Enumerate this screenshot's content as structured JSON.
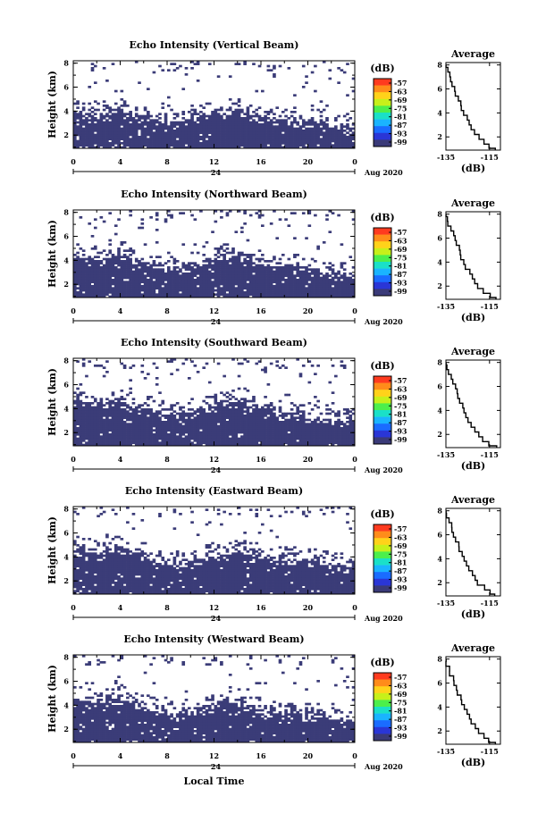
{
  "chart_data": {
    "type": "heatmap",
    "xlabel": "Local Time",
    "x_ticks": [
      "0",
      "4",
      "8",
      "12",
      "16",
      "20",
      "0"
    ],
    "date_label": "Aug 2020",
    "day_label": "24",
    "ylabel": "Height (km)",
    "y_ticks": [
      "8",
      "6",
      "4",
      "2"
    ],
    "ylim_km": [
      0.9,
      8.2
    ],
    "xlim_hours": [
      0,
      24
    ],
    "colorbar": {
      "label": "(dB)",
      "ticks": [
        "-57",
        "-63",
        "-69",
        "-75",
        "-81",
        "-87",
        "-93",
        "-99"
      ],
      "colors": [
        "#ff3b1f",
        "#ff8c1a",
        "#ffd21a",
        "#c7f01a",
        "#4cef4c",
        "#1ae0c8",
        "#1ab4ff",
        "#1a6cff",
        "#2a36d6",
        "#3a3a78"
      ],
      "fill_color": "#3b3c78"
    },
    "profile": {
      "title": "Average",
      "xlabel": "(dB)",
      "x_ticks": [
        "-135",
        "-115"
      ],
      "y_ticks": [
        "8",
        "6",
        "4",
        "2"
      ],
      "xlim": [
        -135,
        -110
      ],
      "ylim_km": [
        0.9,
        8.2
      ],
      "height_km": [
        8.0,
        7.6,
        7.2,
        6.8,
        6.4,
        6.0,
        5.6,
        5.2,
        4.8,
        4.4,
        4.0,
        3.6,
        3.2,
        2.8,
        2.4,
        2.0,
        1.6,
        1.2,
        0.9
      ],
      "power_db": [
        -135,
        -134.4,
        -133.6,
        -132.8,
        -131.9,
        -131.1,
        -130.4,
        -129.3,
        -128.5,
        -127.6,
        -126.7,
        -125.6,
        -124.5,
        -123.4,
        -121.8,
        -120.0,
        -117.8,
        -114.8,
        -112.2
      ]
    },
    "panels": [
      {
        "title": "Echo Intensity (Vertical Beam)",
        "top_km": [
          3.7,
          3.6,
          3.5,
          3.6,
          3.8,
          3.5,
          3.4,
          3.1,
          2.9,
          3.0,
          3.2,
          3.5,
          3.7,
          3.8,
          3.9,
          3.6,
          3.4,
          3.2,
          3.1,
          3.0,
          3.0,
          2.8,
          2.7,
          2.6,
          2.5
        ]
      },
      {
        "title": "Echo Intensity (Northward Beam)",
        "top_km": [
          4.2,
          4.0,
          3.9,
          4.1,
          4.4,
          3.9,
          3.7,
          3.3,
          3.0,
          3.2,
          3.4,
          3.7,
          3.9,
          4.1,
          4.2,
          3.8,
          3.5,
          3.4,
          3.3,
          3.2,
          3.1,
          2.9,
          2.8,
          2.7,
          2.6
        ]
      },
      {
        "title": "Echo Intensity (Southward Beam)",
        "top_km": [
          4.6,
          4.4,
          4.2,
          4.3,
          4.5,
          4.1,
          3.9,
          3.5,
          3.3,
          3.4,
          3.6,
          3.9,
          4.1,
          4.3,
          4.5,
          4.0,
          3.8,
          3.6,
          3.5,
          3.4,
          3.2,
          3.0,
          2.9,
          2.8,
          2.7
        ]
      },
      {
        "title": "Echo Intensity (Eastward Beam)",
        "top_km": [
          4.5,
          4.3,
          4.1,
          4.3,
          4.6,
          4.2,
          3.9,
          3.4,
          3.1,
          3.2,
          3.4,
          3.7,
          3.9,
          4.1,
          4.2,
          3.9,
          3.7,
          3.6,
          3.6,
          3.5,
          3.5,
          3.3,
          3.2,
          3.1,
          3.1
        ]
      },
      {
        "title": "Echo Intensity (Westward Beam)",
        "top_km": [
          4.4,
          4.2,
          4.0,
          4.2,
          4.4,
          4.0,
          3.7,
          3.3,
          3.0,
          3.1,
          3.3,
          3.6,
          3.8,
          4.0,
          4.1,
          3.7,
          3.4,
          3.3,
          3.2,
          3.1,
          3.0,
          2.8,
          2.7,
          2.6,
          2.5
        ]
      }
    ]
  }
}
